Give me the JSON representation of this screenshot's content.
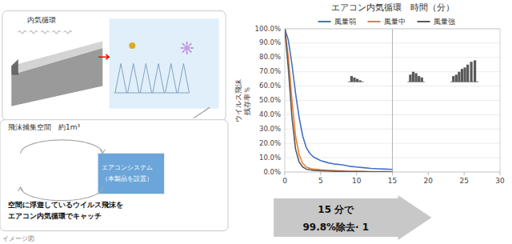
{
  "chart_data": {
    "type": "line",
    "title": "エアコン内気循環　時間（分）",
    "ylabel": [
      "ウイルス飛沫",
      "残存率％"
    ],
    "xlim": [
      0,
      30
    ],
    "ylim": [
      0,
      100
    ],
    "xticks": [
      0,
      5,
      10,
      15,
      20,
      25,
      30
    ],
    "yticks": [
      {
        "value": 0,
        "label": "0.0%"
      },
      {
        "value": 10,
        "label": "10.0%"
      },
      {
        "value": 20,
        "label": "20.0%"
      },
      {
        "value": 30,
        "label": "30.0%"
      },
      {
        "value": 40,
        "label": "40.0%"
      },
      {
        "value": 50,
        "label": "50.0%"
      },
      {
        "value": 60,
        "label": "60.0%"
      },
      {
        "value": 70,
        "label": "70.0%"
      },
      {
        "value": 80,
        "label": "80.0%"
      },
      {
        "value": 90,
        "label": "90.0%"
      },
      {
        "value": 100,
        "label": "100.0%"
      }
    ],
    "grid": true,
    "legend": "upper center",
    "vline": 15,
    "series": [
      {
        "name": "風量弱",
        "color": "#4472C4",
        "type": "line",
        "x": [
          0,
          0.5,
          1,
          1.5,
          2,
          2.5,
          3,
          3.5,
          4,
          5,
          6,
          7,
          8,
          9,
          10,
          11,
          12,
          13,
          14,
          15
        ],
        "values": [
          100.0,
          92.0,
          75.0,
          55.0,
          38.0,
          25.0,
          17.0,
          13.0,
          10.5,
          8.0,
          6.5,
          5.5,
          5.0,
          4.0,
          3.5,
          3.0,
          2.5,
          2.2,
          2.0,
          1.8
        ]
      },
      {
        "name": "風量中",
        "color": "#ED7D31",
        "type": "line",
        "x": [
          0,
          0.5,
          1,
          1.5,
          2,
          2.5,
          3,
          3.5,
          4,
          5,
          6,
          7,
          8,
          9,
          10,
          11,
          12,
          13,
          14,
          15
        ],
        "values": [
          100.0,
          80.0,
          50.0,
          25.0,
          12.0,
          6.0,
          3.5,
          2.5,
          2.0,
          1.5,
          1.2,
          1.0,
          0.8,
          0.6,
          0.5,
          0.4,
          0.3,
          0.25,
          0.2,
          0.18
        ]
      },
      {
        "name": "風量強",
        "color": "#595959",
        "type": "line",
        "x": [
          0,
          0.5,
          1,
          1.5,
          2,
          2.5,
          3,
          3.5,
          4,
          5,
          6,
          7,
          8,
          9,
          10,
          11,
          12,
          13,
          14,
          15
        ],
        "values": [
          100.0,
          72.0,
          38.0,
          16.0,
          7.0,
          3.5,
          2.0,
          1.5,
          1.2,
          0.9,
          0.7,
          0.5,
          0.4,
          0.3,
          0.25,
          0.2,
          0.15,
          0.12,
          0.1,
          0.08
        ]
      },
      {
        "type": "bar",
        "color": "#595959",
        "baseline": 63,
        "base_x": [
          8.8,
          11.0
        ],
        "x": [
          9.3,
          9.7,
          10.1,
          10.5
        ],
        "values": [
          4,
          3,
          2,
          1
        ]
      },
      {
        "type": "bar",
        "color": "#595959",
        "baseline": 63,
        "base_x": [
          17.1,
          19.5
        ],
        "x": [
          17.5,
          17.9,
          18.3,
          18.7,
          19.1
        ],
        "values": [
          5,
          7,
          6,
          4,
          3
        ]
      },
      {
        "type": "bar",
        "color": "#595959",
        "baseline": 63,
        "base_x": [
          23.1,
          27.0
        ],
        "x": [
          23.5,
          23.9,
          24.3,
          24.7,
          25.1,
          25.5,
          26.0,
          26.5
        ],
        "values": [
          4,
          5,
          7,
          9,
          10,
          12,
          14,
          15
        ]
      }
    ],
    "annotations": [
      "15 分で",
      "99.8%除去· 1",
      "内気循環",
      "飛沫捕集空間　約1m³",
      "エアコンシステム",
      "（本製品を設置）",
      "空間に浮遊しているウイルス飛沫を",
      "エアコン内気循環でキャッチ",
      "イメージ図"
    ]
  }
}
